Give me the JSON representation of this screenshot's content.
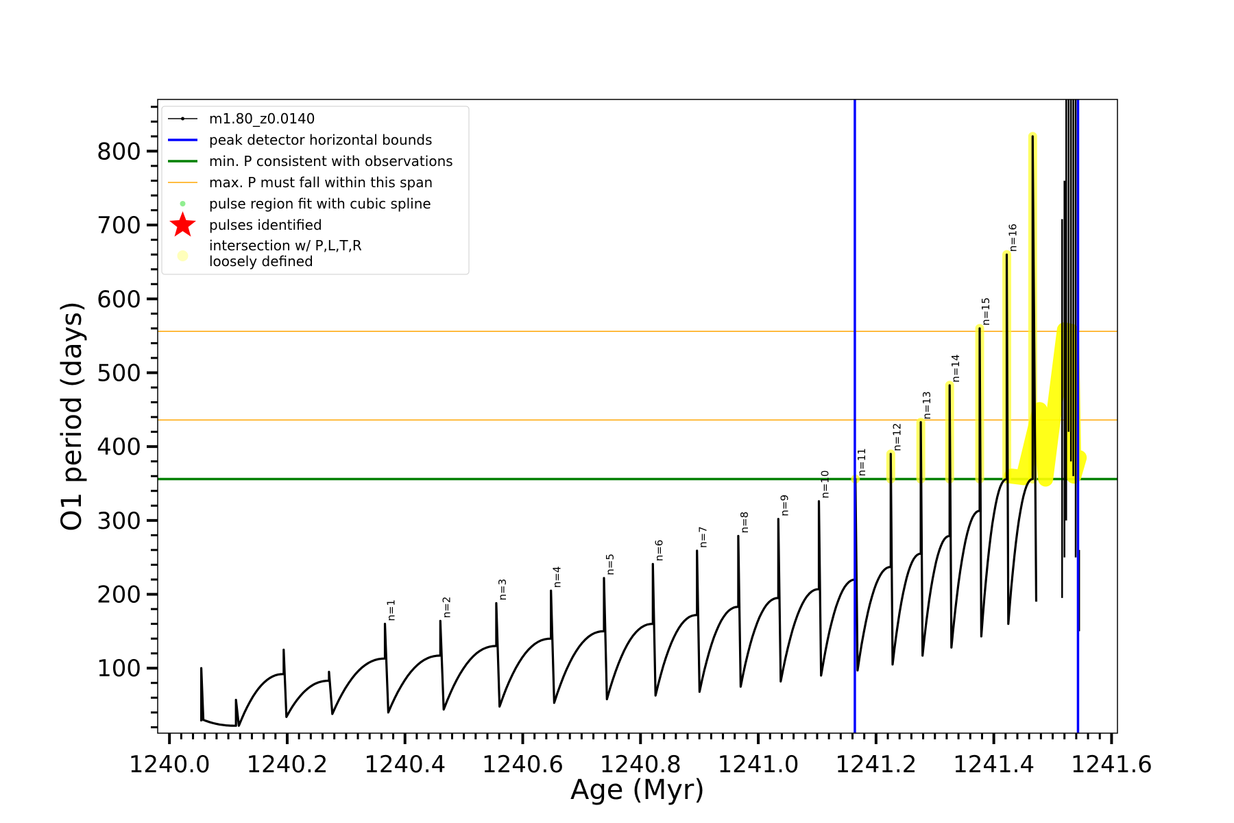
{
  "chart_data": {
    "type": "line",
    "xlabel": "Age (Myr)",
    "ylabel": "O1 period (days)",
    "xlim": [
      1239.98,
      1241.61
    ],
    "ylim": [
      12,
      870
    ],
    "xticks": [
      {
        "value": 1240.0,
        "label": "1240.0"
      },
      {
        "value": 1240.2,
        "label": "1240.2"
      },
      {
        "value": 1240.4,
        "label": "1240.4"
      },
      {
        "value": 1240.6,
        "label": "1240.6"
      },
      {
        "value": 1240.8,
        "label": "1240.8"
      },
      {
        "value": 1241.0,
        "label": "1241.0"
      },
      {
        "value": 1241.2,
        "label": "1241.2"
      },
      {
        "value": 1241.4,
        "label": "1241.4"
      },
      {
        "value": 1241.6,
        "label": "1241.6"
      }
    ],
    "yticks": [
      {
        "value": 100,
        "label": "100"
      },
      {
        "value": 200,
        "label": "200"
      },
      {
        "value": 300,
        "label": "300"
      },
      {
        "value": 400,
        "label": "400"
      },
      {
        "value": 500,
        "label": "500"
      },
      {
        "value": 600,
        "label": "600"
      },
      {
        "value": 700,
        "label": "700"
      },
      {
        "value": 800,
        "label": "800"
      }
    ],
    "legend": {
      "placement": "top-left",
      "entries": [
        {
          "label": "m1.80_z0.0140",
          "color": "#000000",
          "marker": "line-dot"
        },
        {
          "label": "peak detector horizontal bounds",
          "color": "#0000ff",
          "marker": "line"
        },
        {
          "label": "min. P consistent with observations",
          "color": "#008000",
          "marker": "line"
        },
        {
          "label": "max. P must fall within this span",
          "color": "#ffa500",
          "marker": "thin-line"
        },
        {
          "label": "pulse region fit with cubic spline",
          "color": "#90ee90",
          "marker": "dot"
        },
        {
          "label": "pulses identified",
          "color": "#ff0000",
          "marker": "star"
        },
        {
          "label": "intersection w/ P,L,T,R",
          "label2": "loosely defined",
          "color": "#ffffaa",
          "marker": "circle"
        }
      ]
    },
    "vlines": [
      {
        "x": 1241.164,
        "color": "#0000ff"
      },
      {
        "x": 1241.543,
        "color": "#0000ff"
      }
    ],
    "hlines": [
      {
        "y": 356,
        "color": "#008000"
      },
      {
        "y": 436,
        "color": "#ffa500"
      },
      {
        "y": 556,
        "color": "#ffa500"
      }
    ],
    "series_pulses": [
      {
        "x": 1240.054,
        "peak": 100,
        "start": 28,
        "post_min": 30,
        "label": ""
      },
      {
        "x": 1240.113,
        "peak": 57,
        "start": 22,
        "post_min": 22,
        "label": ""
      },
      {
        "x": 1240.194,
        "peak": 125,
        "start": 92,
        "post_min": 34,
        "label": ""
      },
      {
        "x": 1240.271,
        "peak": 95,
        "start": 83,
        "post_min": 38,
        "label": ""
      },
      {
        "x": 1240.366,
        "peak": 160,
        "start": 113,
        "post_min": 40,
        "label": "n=1"
      },
      {
        "x": 1240.46,
        "peak": 164,
        "start": 117,
        "post_min": 44,
        "label": "n=2"
      },
      {
        "x": 1240.555,
        "peak": 188,
        "start": 130,
        "post_min": 48,
        "label": "n=3"
      },
      {
        "x": 1240.648,
        "peak": 205,
        "start": 140,
        "post_min": 53,
        "label": "n=4"
      },
      {
        "x": 1240.738,
        "peak": 222,
        "start": 150,
        "post_min": 58,
        "label": "n=5"
      },
      {
        "x": 1240.821,
        "peak": 241,
        "start": 160,
        "post_min": 63,
        "label": "n=6"
      },
      {
        "x": 1240.896,
        "peak": 259,
        "start": 172,
        "post_min": 68,
        "label": "n=7"
      },
      {
        "x": 1240.966,
        "peak": 279,
        "start": 183,
        "post_min": 75,
        "label": "n=8"
      },
      {
        "x": 1241.034,
        "peak": 302,
        "start": 195,
        "post_min": 82,
        "label": "n=9"
      },
      {
        "x": 1241.103,
        "peak": 326,
        "start": 207,
        "post_min": 90,
        "label": "n=10"
      },
      {
        "x": 1241.165,
        "peak": 356,
        "start": 220,
        "post_min": 97,
        "label": "n=11"
      },
      {
        "x": 1241.225,
        "peak": 390,
        "start": 237,
        "post_min": 105,
        "label": "n=12"
      },
      {
        "x": 1241.276,
        "peak": 433,
        "start": 255,
        "post_min": 117,
        "label": "n=13"
      },
      {
        "x": 1241.325,
        "peak": 483,
        "start": 279,
        "post_min": 128,
        "label": "n=14"
      },
      {
        "x": 1241.376,
        "peak": 560,
        "start": 313,
        "post_min": 143,
        "label": "n=15"
      },
      {
        "x": 1241.422,
        "peak": 660,
        "start": 356,
        "post_min": 160,
        "label": "n=16"
      },
      {
        "x": 1241.466,
        "peak": 820,
        "start": 356,
        "post_min": 190,
        "label": ""
      }
    ],
    "spline_highlight": [
      {
        "x": 1241.43,
        "y": 360
      },
      {
        "x": 1241.45,
        "y": 358
      },
      {
        "x": 1241.478,
        "y": 450
      },
      {
        "x": 1241.488,
        "y": 356
      },
      {
        "x": 1241.52,
        "y": 558
      },
      {
        "x": 1241.532,
        "y": 556
      },
      {
        "x": 1241.536,
        "y": 360
      },
      {
        "x": 1241.545,
        "y": 385
      }
    ]
  }
}
